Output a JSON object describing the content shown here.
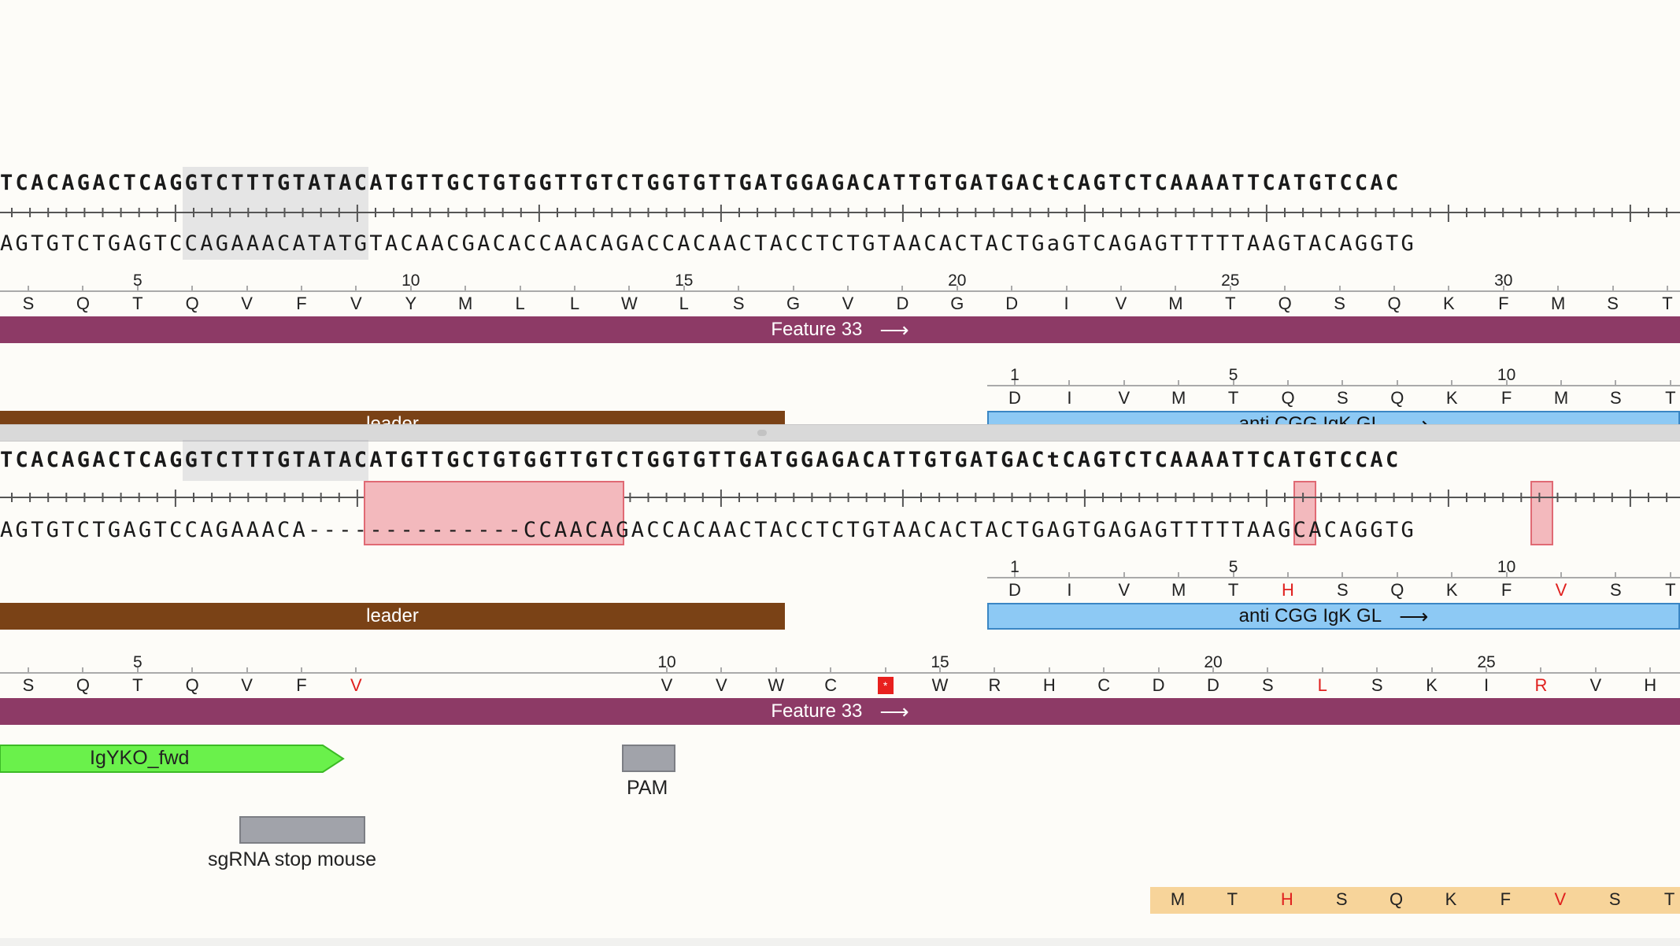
{
  "colors": {
    "feature33": "#8d3a66",
    "leader": "#7a4216",
    "igk": "#8dc9f4",
    "igyko": "#6af14b",
    "orf": "#f7d49a",
    "mismatch_red": "#e0201e"
  },
  "pane1": {
    "top_strand": "TCACAGACTCAGGTCTTTGTATACATGTTGCTGTGGTTGTCTGGTGTTGATGGAGACATTGTGATGACtCAGTCTCAAAATTCATGTCCAC",
    "bottom_strand": "AGTGTCTGAGTCCAGAAACATATGTACAACGACACCAACAGACCACAACTACCTCTGTAACACTACTGaGTCAGAGTTTTTAAGTACAGGTG",
    "translation_nums": [
      "5",
      "10",
      "15",
      "20",
      "25",
      "30"
    ],
    "translation": [
      "S",
      "Q",
      "T",
      "Q",
      "V",
      "F",
      "V",
      "Y",
      "M",
      "L",
      "L",
      "W",
      "L",
      "S",
      "G",
      "V",
      "D",
      "G",
      "D",
      "I",
      "V",
      "M",
      "T",
      "Q",
      "S",
      "Q",
      "K",
      "F",
      "M",
      "S",
      "T"
    ],
    "feature33_label": "Feature 33",
    "igk_nums": [
      "1",
      "5",
      "10"
    ],
    "igk_translation": [
      "D",
      "I",
      "V",
      "M",
      "T",
      "Q",
      "S",
      "Q",
      "K",
      "F",
      "M",
      "S",
      "T"
    ],
    "leader_label": "leader",
    "igk_label": "anti CGG IgK GL"
  },
  "pane2": {
    "top_strand": "TCACAGACTCAGGTCTTTGTATACATGTTGCTGTGGTTGTCTGGTGTTGATGGAGACATTGTGATGACtCAGTCTCAAAATTCATGTCCAC",
    "bottom_left": "AGTGTCTGAGTCCAGAAACA",
    "bottom_gap": "--------------",
    "bottom_right": "CCAACAGACCACAACTACCTCTGTAACACTACTGAGTGAGAGTTTTTAAGCACAGGTG",
    "igk_nums": [
      "1",
      "5",
      "10"
    ],
    "igk_translation": [
      "D",
      "I",
      "V",
      "M",
      "T",
      "H",
      "S",
      "Q",
      "K",
      "F",
      "V",
      "S",
      "T"
    ],
    "leader_label": "leader",
    "igk_label": "anti CGG IgK GL",
    "translation_nums": [
      "5",
      "10",
      "15",
      "20",
      "25"
    ],
    "translation": [
      "S",
      "Q",
      "T",
      "Q",
      "V",
      "F",
      "V",
      "V",
      "V",
      "W",
      "C",
      "*",
      "W",
      "R",
      "H",
      "C",
      "D",
      "D",
      "S",
      "L",
      "S",
      "K",
      "I",
      "R",
      "V",
      "H"
    ],
    "feature33_label": "Feature 33",
    "primer_label": "IgYKO_fwd",
    "pam_label": "PAM",
    "sgrna_label": "sgRNA stop mouse",
    "orf_translation": [
      "M",
      "T",
      "H",
      "S",
      "Q",
      "K",
      "F",
      "V",
      "S",
      "T"
    ]
  }
}
